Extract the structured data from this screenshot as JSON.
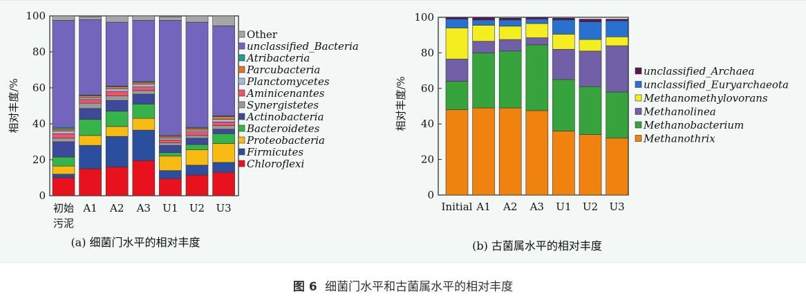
{
  "figure": {
    "caption_number": "图 6",
    "caption_text": "细菌门水平和古菌属水平的相对丰度"
  },
  "chart_data": [
    {
      "type": "bar",
      "stacked": true,
      "subtitle": "(a) 细菌门水平的相对丰度",
      "ylabel": "相对丰度/%",
      "ylim": [
        0,
        100
      ],
      "yticks": [
        0,
        20,
        40,
        60,
        80,
        100
      ],
      "categories": [
        [
          "初始",
          "污泥"
        ],
        [
          "A1"
        ],
        [
          "A2"
        ],
        [
          "A3"
        ],
        [
          "U1"
        ],
        [
          "U2"
        ],
        [
          "U3"
        ]
      ],
      "legend_placement": "right",
      "series": [
        {
          "name": "Chloroflexi",
          "color": "#e8121e",
          "values": [
            10,
            15,
            16,
            19.5,
            9.5,
            11.5,
            13
          ]
        },
        {
          "name": "Firmicutes",
          "color": "#2b4e9e",
          "values": [
            2,
            13,
            17,
            17,
            4.5,
            5.5,
            5.5
          ]
        },
        {
          "name": "Proteobacteria",
          "color": "#f7bb12",
          "values": [
            4.5,
            5.5,
            5.5,
            6.5,
            8,
            8.5,
            10.5
          ]
        },
        {
          "name": "Bacteroidetes",
          "color": "#36b449",
          "values": [
            5,
            9,
            8.5,
            8,
            2,
            3,
            5.5
          ]
        },
        {
          "name": "Actinobacteria",
          "color": "#3d4a9c",
          "values": [
            8.5,
            6,
            6,
            5.5,
            4,
            3.5,
            2.5
          ]
        },
        {
          "name": "Synergistetes",
          "color": "#9a9a9a",
          "values": [
            2,
            3,
            2.5,
            2,
            1.5,
            1.5,
            2
          ]
        },
        {
          "name": "Aminicenantes",
          "color": "#f0546a",
          "values": [
            2.5,
            2,
            2.5,
            2,
            1.5,
            2,
            2
          ]
        },
        {
          "name": "Planctomycetes",
          "color": "#a8b6de",
          "values": [
            1.5,
            1,
            1.5,
            1.5,
            1,
            1,
            1.5
          ]
        },
        {
          "name": "Parcubacteria",
          "color": "#e4742c",
          "values": [
            1,
            1,
            1,
            1,
            1,
            1,
            1.5
          ]
        },
        {
          "name": "Atribacteria",
          "color": "#1f9a94",
          "values": [
            1,
            0.5,
            0.5,
            0.5,
            0.5,
            0.5,
            0.5
          ]
        },
        {
          "name": "unclassified_Bacteria",
          "color": "#7365be",
          "values": [
            59.5,
            42,
            35.5,
            34,
            64,
            58.5,
            50
          ]
        },
        {
          "name": "Other",
          "color": "#a6a6a6",
          "values": [
            2.5,
            1.5,
            3.5,
            2.5,
            2,
            3.5,
            5.5
          ]
        }
      ]
    },
    {
      "type": "bar",
      "stacked": true,
      "subtitle": "(b) 古菌属水平的相对丰度",
      "ylabel": "相对丰度/%",
      "ylim": [
        0,
        100
      ],
      "yticks": [
        0,
        20,
        40,
        60,
        80,
        100
      ],
      "categories": [
        [
          "Initial"
        ],
        [
          "A1"
        ],
        [
          "A2"
        ],
        [
          "A3"
        ],
        [
          "U1"
        ],
        [
          "U2"
        ],
        [
          "U3"
        ]
      ],
      "legend_placement": "right",
      "series": [
        {
          "name": "Methanothrix",
          "color": "#f0820f",
          "values": [
            48,
            49,
            49,
            47.5,
            36,
            34,
            32
          ]
        },
        {
          "name": "Methanobacterium",
          "color": "#37a33c",
          "values": [
            16,
            31,
            32,
            37,
            29,
            27,
            26
          ]
        },
        {
          "name": "Methanolinea",
          "color": "#7160a8",
          "values": [
            12.5,
            6.5,
            6.5,
            4,
            17,
            20,
            26
          ]
        },
        {
          "name": "Methanomethylovorans",
          "color": "#f4ee20",
          "values": [
            17.5,
            9,
            7.5,
            8,
            8.5,
            6.5,
            5
          ]
        },
        {
          "name": "unclassified_Euryarchaeota",
          "color": "#2871d0",
          "values": [
            5,
            3,
            3.5,
            2.5,
            8,
            10,
            9
          ]
        },
        {
          "name": "unclassified_Archaea",
          "color": "#5b1650",
          "values": [
            1,
            1.5,
            1,
            1,
            1,
            1.5,
            1
          ]
        }
      ]
    }
  ]
}
